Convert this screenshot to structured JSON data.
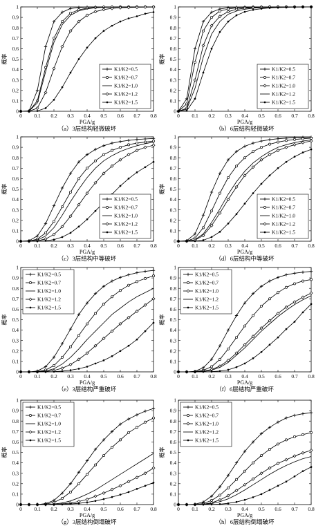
{
  "legend_labels": [
    "K1/K2=0.5",
    "K1/K2=0.7",
    "K1/K2=1.0",
    "K1/K2=1.2",
    "K1/K2=1.5"
  ],
  "chart_data": [
    {
      "type": "line",
      "id": "a",
      "caption": "（a）3层结构轻微破坏",
      "xlabel": "PGA/g",
      "ylabel": "概率",
      "xlim": [
        0,
        0.8
      ],
      "ylim": [
        0,
        1
      ],
      "legend_position": "bottom-right",
      "grid": false,
      "series": [
        {
          "name": "K1/K2=0.5",
          "marker": "plus",
          "values": [
            0,
            0.004,
            0.2,
            0.62,
            0.86,
            0.95,
            0.985,
            0.995,
            0.999,
            1,
            1,
            1,
            1,
            1,
            1,
            1,
            1
          ]
        },
        {
          "name": "K1/K2=0.7",
          "marker": "circle",
          "values": [
            0,
            0.002,
            0.1,
            0.42,
            0.7,
            0.86,
            0.94,
            0.973,
            0.988,
            0.995,
            0.998,
            0.999,
            1,
            1,
            1,
            1,
            1
          ]
        },
        {
          "name": "K1/K2=1.0",
          "marker": "none",
          "values": [
            0,
            0.002,
            0.08,
            0.38,
            0.66,
            0.83,
            0.92,
            0.962,
            0.982,
            0.992,
            0.996,
            0.998,
            0.999,
            1,
            1,
            1,
            1
          ]
        },
        {
          "name": "K1/K2=1.2",
          "marker": "diamond",
          "values": [
            0,
            0.0005,
            0.03,
            0.18,
            0.41,
            0.62,
            0.77,
            0.86,
            0.92,
            0.955,
            0.975,
            0.986,
            0.992,
            0.995,
            0.997,
            0.998,
            0.999
          ]
        },
        {
          "name": "K1/K2=1.5",
          "marker": "dot",
          "values": [
            0,
            0,
            0.003,
            0.03,
            0.11,
            0.23,
            0.37,
            0.5,
            0.61,
            0.7,
            0.77,
            0.82,
            0.86,
            0.89,
            0.91,
            0.935,
            0.95
          ]
        }
      ]
    },
    {
      "type": "line",
      "id": "b",
      "caption": "（b）6层结构轻微破坏",
      "xlabel": "PGA/g",
      "ylabel": "概率",
      "xlim": [
        0,
        0.8
      ],
      "ylim": [
        0,
        1
      ],
      "legend_position": "bottom-right",
      "grid": false,
      "series": [
        {
          "name": "K1/K2=0.5",
          "marker": "plus",
          "values": [
            0,
            0.12,
            0.6,
            0.86,
            0.95,
            0.98,
            0.993,
            0.997,
            0.999,
            1,
            1,
            1,
            1,
            1,
            1,
            1,
            1
          ]
        },
        {
          "name": "K1/K2=0.7",
          "marker": "circle",
          "values": [
            0,
            0.07,
            0.47,
            0.77,
            0.9,
            0.96,
            0.98,
            0.99,
            0.995,
            0.998,
            0.999,
            1,
            1,
            1,
            1,
            1,
            1
          ]
        },
        {
          "name": "K1/K2=1.0",
          "marker": "diamond",
          "values": [
            0,
            0.03,
            0.3,
            0.63,
            0.82,
            0.91,
            0.955,
            0.977,
            0.988,
            0.994,
            0.997,
            0.998,
            0.999,
            1,
            1,
            1,
            1
          ]
        },
        {
          "name": "K1/K2=1.2",
          "marker": "none",
          "values": [
            0,
            0.02,
            0.22,
            0.52,
            0.74,
            0.86,
            0.93,
            0.96,
            0.978,
            0.988,
            0.993,
            0.996,
            0.998,
            0.999,
            1,
            1,
            1
          ]
        },
        {
          "name": "K1/K2=1.5",
          "marker": "dot",
          "values": [
            0,
            0.005,
            0.12,
            0.37,
            0.6,
            0.76,
            0.86,
            0.92,
            0.953,
            0.972,
            0.983,
            0.99,
            0.994,
            0.996,
            0.998,
            0.999,
            1
          ]
        }
      ]
    },
    {
      "type": "line",
      "id": "c",
      "caption": "（c）3层结构中等破坏",
      "xlabel": "PGA/g",
      "ylabel": "概率",
      "xlim": [
        0,
        0.8
      ],
      "ylim": [
        0,
        1
      ],
      "legend_position": "bottom-right",
      "grid": false,
      "series": [
        {
          "name": "K1/K2=0.5",
          "marker": "plus",
          "values": [
            0,
            0.005,
            0.05,
            0.17,
            0.34,
            0.51,
            0.65,
            0.76,
            0.83,
            0.88,
            0.915,
            0.94,
            0.955,
            0.966,
            0.975,
            0.98,
            0.985
          ]
        },
        {
          "name": "K1/K2=0.7",
          "marker": "circle",
          "values": [
            0,
            0.002,
            0.02,
            0.08,
            0.19,
            0.33,
            0.47,
            0.6,
            0.7,
            0.77,
            0.83,
            0.87,
            0.9,
            0.925,
            0.94,
            0.95,
            0.96
          ]
        },
        {
          "name": "K1/K2=1.0",
          "marker": "none",
          "values": [
            0,
            0.0008,
            0.01,
            0.05,
            0.13,
            0.25,
            0.38,
            0.5,
            0.61,
            0.7,
            0.77,
            0.82,
            0.86,
            0.89,
            0.915,
            0.935,
            0.95
          ]
        },
        {
          "name": "K1/K2=1.2",
          "marker": "diamond",
          "values": [
            0,
            0.0003,
            0.004,
            0.022,
            0.065,
            0.14,
            0.24,
            0.35,
            0.46,
            0.56,
            0.65,
            0.72,
            0.78,
            0.83,
            0.87,
            0.9,
            0.92
          ]
        },
        {
          "name": "K1/K2=1.5",
          "marker": "dot",
          "values": [
            0,
            0,
            0.0005,
            0.004,
            0.015,
            0.04,
            0.08,
            0.14,
            0.21,
            0.29,
            0.37,
            0.45,
            0.53,
            0.6,
            0.66,
            0.71,
            0.76
          ]
        }
      ]
    },
    {
      "type": "line",
      "id": "d",
      "caption": "（d）6层结构中等破坏",
      "xlabel": "PGA/g",
      "ylabel": "概率",
      "xlim": [
        0,
        0.8
      ],
      "ylim": [
        0,
        1
      ],
      "legend_position": "bottom-right",
      "grid": false,
      "series": [
        {
          "name": "K1/K2=0.5",
          "marker": "plus",
          "values": [
            0,
            0.005,
            0.07,
            0.25,
            0.47,
            0.65,
            0.78,
            0.86,
            0.91,
            0.94,
            0.96,
            0.973,
            0.982,
            0.988,
            0.992,
            0.995,
            0.996
          ]
        },
        {
          "name": "K1/K2=0.7",
          "marker": "circle",
          "values": [
            0,
            0.002,
            0.03,
            0.13,
            0.29,
            0.46,
            0.61,
            0.72,
            0.8,
            0.86,
            0.9,
            0.93,
            0.95,
            0.965,
            0.975,
            0.982,
            0.987
          ]
        },
        {
          "name": "K1/K2=1.0",
          "marker": "none",
          "values": [
            0,
            0.0008,
            0.014,
            0.07,
            0.18,
            0.31,
            0.45,
            0.57,
            0.67,
            0.75,
            0.81,
            0.86,
            0.9,
            0.925,
            0.945,
            0.96,
            0.97
          ]
        },
        {
          "name": "K1/K2=1.2",
          "marker": "diamond",
          "values": [
            0,
            0.0005,
            0.01,
            0.055,
            0.15,
            0.27,
            0.4,
            0.52,
            0.63,
            0.71,
            0.78,
            0.83,
            0.87,
            0.9,
            0.925,
            0.945,
            0.96
          ]
        },
        {
          "name": "K1/K2=1.5",
          "marker": "dot",
          "values": [
            0,
            0,
            0.001,
            0.01,
            0.04,
            0.09,
            0.17,
            0.26,
            0.36,
            0.46,
            0.55,
            0.63,
            0.7,
            0.76,
            0.81,
            0.85,
            0.88
          ]
        }
      ]
    },
    {
      "type": "line",
      "id": "e",
      "caption": "（e）3层结构严重破坏",
      "xlabel": "PGA/g",
      "ylabel": "概率",
      "xlim": [
        0,
        0.8
      ],
      "ylim": [
        0,
        1
      ],
      "legend_position": "top-left",
      "grid": false,
      "series": [
        {
          "name": "K1/K2=0.5",
          "marker": "plus",
          "values": [
            0,
            0,
            0.008,
            0.05,
            0.14,
            0.27,
            0.41,
            0.55,
            0.66,
            0.75,
            0.82,
            0.87,
            0.905,
            0.93,
            0.95,
            0.963,
            0.972
          ]
        },
        {
          "name": "K1/K2=0.7",
          "marker": "circle",
          "values": [
            0,
            0,
            0.002,
            0.018,
            0.06,
            0.14,
            0.24,
            0.35,
            0.46,
            0.56,
            0.65,
            0.72,
            0.78,
            0.83,
            0.865,
            0.895,
            0.92
          ]
        },
        {
          "name": "K1/K2=1.0",
          "marker": "none",
          "values": [
            0,
            0,
            0.001,
            0.008,
            0.03,
            0.075,
            0.14,
            0.22,
            0.31,
            0.39,
            0.47,
            0.55,
            0.61,
            0.67,
            0.72,
            0.76,
            0.8
          ]
        },
        {
          "name": "K1/K2=1.2",
          "marker": "diamond",
          "values": [
            0,
            0,
            0.0003,
            0.003,
            0.013,
            0.035,
            0.07,
            0.12,
            0.18,
            0.25,
            0.32,
            0.39,
            0.46,
            0.52,
            0.58,
            0.64,
            0.7
          ]
        },
        {
          "name": "K1/K2=1.5",
          "marker": "dot",
          "values": [
            0,
            0,
            0,
            0.0005,
            0.002,
            0.007,
            0.016,
            0.03,
            0.05,
            0.08,
            0.11,
            0.15,
            0.2,
            0.25,
            0.31,
            0.39,
            0.47
          ]
        }
      ]
    },
    {
      "type": "line",
      "id": "f",
      "caption": "（f）6层结构严重破坏",
      "xlabel": "PGA/g",
      "ylabel": "概率",
      "xlim": [
        0,
        0.8
      ],
      "ylim": [
        0,
        1
      ],
      "legend_position": "top-left",
      "grid": false,
      "series": [
        {
          "name": "K1/K2=0.5",
          "marker": "plus",
          "values": [
            0,
            0,
            0.005,
            0.04,
            0.12,
            0.25,
            0.4,
            0.54,
            0.66,
            0.75,
            0.82,
            0.87,
            0.905,
            0.93,
            0.945,
            0.955,
            0.962
          ]
        },
        {
          "name": "K1/K2=0.7",
          "marker": "circle",
          "values": [
            0,
            0,
            0.002,
            0.015,
            0.05,
            0.12,
            0.22,
            0.33,
            0.44,
            0.54,
            0.63,
            0.7,
            0.76,
            0.81,
            0.845,
            0.87,
            0.885
          ]
        },
        {
          "name": "K1/K2=1.0",
          "marker": "diamond",
          "values": [
            0,
            0,
            0.001,
            0.006,
            0.022,
            0.055,
            0.11,
            0.18,
            0.26,
            0.34,
            0.42,
            0.49,
            0.56,
            0.62,
            0.67,
            0.715,
            0.755
          ]
        },
        {
          "name": "K1/K2=1.2",
          "marker": "none",
          "values": [
            0,
            0,
            0.0005,
            0.004,
            0.016,
            0.043,
            0.09,
            0.16,
            0.23,
            0.31,
            0.39,
            0.46,
            0.53,
            0.59,
            0.645,
            0.69,
            0.73
          ]
        },
        {
          "name": "K1/K2=1.5",
          "marker": "dot",
          "values": [
            0,
            0,
            0,
            0.0005,
            0.002,
            0.008,
            0.02,
            0.045,
            0.08,
            0.13,
            0.19,
            0.26,
            0.33,
            0.41,
            0.48,
            0.57,
            0.65
          ]
        }
      ]
    },
    {
      "type": "line",
      "id": "g",
      "caption": "（g）3层结构倒塌破坏",
      "xlabel": "PGA/g",
      "ylabel": "概率",
      "xlim": [
        0,
        0.8
      ],
      "ylim": [
        0,
        1
      ],
      "legend_position": "top-left",
      "grid": false,
      "series": [
        {
          "name": "K1/K2=0.5",
          "marker": "plus",
          "values": [
            0,
            0,
            0,
            0.01,
            0.04,
            0.11,
            0.2,
            0.31,
            0.42,
            0.53,
            0.62,
            0.7,
            0.77,
            0.82,
            0.86,
            0.895,
            0.92
          ]
        },
        {
          "name": "K1/K2=0.7",
          "marker": "circle",
          "values": [
            0,
            0,
            0,
            0.005,
            0.02,
            0.06,
            0.12,
            0.2,
            0.29,
            0.38,
            0.47,
            0.55,
            0.62,
            0.69,
            0.74,
            0.79,
            0.83
          ]
        },
        {
          "name": "K1/K2=1.0",
          "marker": "none",
          "values": [
            0,
            0,
            0,
            0.001,
            0.005,
            0.015,
            0.035,
            0.065,
            0.1,
            0.14,
            0.19,
            0.24,
            0.29,
            0.34,
            0.39,
            0.44,
            0.49
          ]
        },
        {
          "name": "K1/K2=1.2",
          "marker": "diamond",
          "values": [
            0,
            0,
            0,
            0,
            0.002,
            0.006,
            0.015,
            0.03,
            0.05,
            0.08,
            0.11,
            0.145,
            0.18,
            0.22,
            0.26,
            0.3,
            0.35
          ]
        },
        {
          "name": "K1/K2=1.5",
          "marker": "dot",
          "values": [
            0,
            0,
            0,
            0,
            0.0005,
            0.002,
            0.006,
            0.012,
            0.022,
            0.035,
            0.052,
            0.072,
            0.095,
            0.12,
            0.15,
            0.18,
            0.21
          ]
        }
      ]
    },
    {
      "type": "line",
      "id": "h",
      "caption": "（h）6层结构倒塌破坏",
      "xlabel": "PGA/g",
      "ylabel": "概率",
      "xlim": [
        0,
        0.8
      ],
      "ylim": [
        0,
        1
      ],
      "legend_position": "top-left",
      "grid": false,
      "series": [
        {
          "name": "K1/K2=0.5",
          "marker": "plus",
          "values": [
            0,
            0,
            0.003,
            0.025,
            0.08,
            0.17,
            0.28,
            0.4,
            0.51,
            0.6,
            0.68,
            0.74,
            0.79,
            0.83,
            0.855,
            0.87,
            0.88
          ]
        },
        {
          "name": "K1/K2=0.7",
          "marker": "circle",
          "values": [
            0,
            0,
            0.001,
            0.01,
            0.04,
            0.09,
            0.16,
            0.24,
            0.32,
            0.4,
            0.47,
            0.53,
            0.58,
            0.62,
            0.65,
            0.67,
            0.69
          ]
        },
        {
          "name": "K1/K2=1.0",
          "marker": "diamond",
          "values": [
            0,
            0,
            0.0005,
            0.004,
            0.017,
            0.045,
            0.085,
            0.135,
            0.19,
            0.245,
            0.3,
            0.35,
            0.395,
            0.43,
            0.465,
            0.495,
            0.52
          ]
        },
        {
          "name": "K1/K2=1.2",
          "marker": "none",
          "values": [
            0,
            0,
            0,
            0.002,
            0.009,
            0.027,
            0.055,
            0.095,
            0.14,
            0.19,
            0.24,
            0.29,
            0.335,
            0.375,
            0.41,
            0.44,
            0.46
          ]
        },
        {
          "name": "K1/K2=1.5",
          "marker": "dot",
          "values": [
            0,
            0,
            0,
            0,
            0.001,
            0.004,
            0.012,
            0.025,
            0.045,
            0.07,
            0.1,
            0.14,
            0.18,
            0.22,
            0.27,
            0.32,
            0.36
          ]
        }
      ]
    }
  ]
}
